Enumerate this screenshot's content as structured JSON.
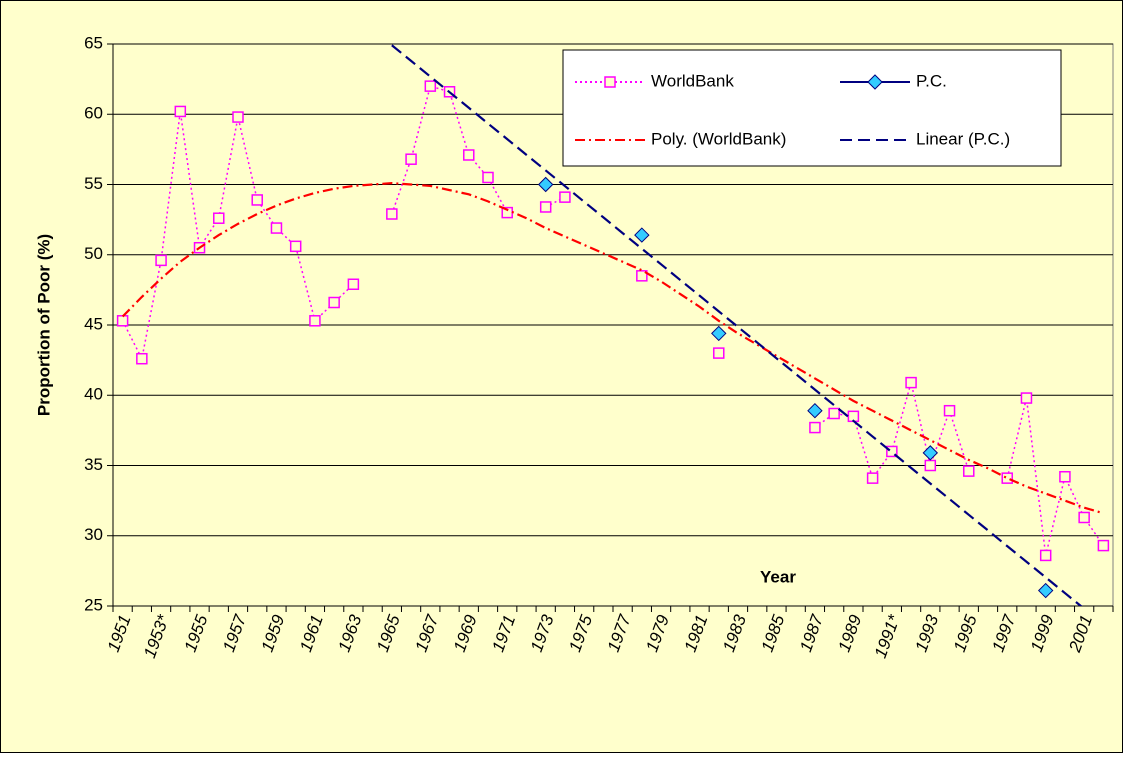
{
  "chart_data": {
    "type": "line",
    "x_label": "Year",
    "y_label": "Proportion of Poor (%)",
    "categories": [
      "1951",
      null,
      "1953*",
      null,
      "1955",
      null,
      "1957",
      null,
      "1959",
      null,
      "1961",
      null,
      "1963",
      null,
      "1965",
      null,
      "1967",
      null,
      "1969",
      null,
      "1971",
      null,
      "1973",
      null,
      "1975",
      null,
      "1977",
      null,
      "1979",
      null,
      "1981",
      null,
      "1983",
      null,
      "1985",
      null,
      "1987",
      null,
      "1989",
      null,
      "1991*",
      null,
      "1993",
      null,
      "1995",
      null,
      "1997",
      null,
      "1999",
      null,
      "2001",
      null
    ],
    "series": [
      {
        "name": "WorldBank",
        "color": "#ff00ff",
        "marker": "square",
        "line": "dotted",
        "values": [
          45.3,
          42.6,
          49.6,
          60.2,
          50.5,
          52.6,
          59.8,
          53.9,
          51.9,
          50.6,
          45.3,
          46.6,
          47.9,
          null,
          52.9,
          56.8,
          62.0,
          61.6,
          57.1,
          55.5,
          53.0,
          null,
          53.4,
          54.1,
          null,
          null,
          null,
          48.5,
          null,
          null,
          null,
          43.0,
          null,
          null,
          null,
          null,
          37.7,
          38.7,
          38.5,
          34.1,
          36.0,
          40.9,
          35.0,
          38.9,
          34.6,
          null,
          34.1,
          39.8,
          28.6,
          34.2,
          31.3,
          29.3
        ]
      },
      {
        "name": "P.C.",
        "color": "#000080",
        "marker": "diamond",
        "line": "none",
        "values": [
          null,
          null,
          null,
          null,
          null,
          null,
          null,
          null,
          null,
          null,
          null,
          null,
          null,
          null,
          null,
          null,
          null,
          null,
          null,
          null,
          null,
          null,
          55.0,
          null,
          null,
          null,
          null,
          51.4,
          null,
          null,
          null,
          44.4,
          null,
          null,
          null,
          null,
          38.9,
          null,
          null,
          null,
          null,
          null,
          35.9,
          null,
          null,
          null,
          null,
          null,
          26.1,
          null,
          null,
          null
        ]
      },
      {
        "name": "Poly. (WorldBank)",
        "color": "#ff0000",
        "marker": "none",
        "line": "dashdot",
        "values": [
          45.6,
          47.0,
          48.3,
          49.5,
          50.5,
          51.4,
          52.2,
          52.9,
          53.5,
          54.0,
          54.4,
          54.7,
          54.9,
          55.0,
          55.1,
          55.0,
          54.9,
          54.6,
          54.3,
          53.8,
          53.2,
          52.6,
          51.9,
          51.3,
          50.7,
          50.1,
          49.5,
          48.9,
          48.1,
          47.2,
          46.3,
          45.3,
          44.4,
          43.6,
          42.8,
          42.0,
          41.2,
          40.4,
          39.6,
          38.9,
          38.2,
          37.5,
          36.8,
          36.1,
          35.4,
          34.8,
          34.1,
          33.5,
          33.0,
          32.5,
          32.0,
          31.6
        ]
      },
      {
        "name": "Linear (P.C.)",
        "color": "#000080",
        "marker": "none",
        "line": "dashed",
        "values": [
          null,
          null,
          null,
          null,
          null,
          null,
          null,
          null,
          null,
          null,
          null,
          null,
          null,
          null,
          64.91,
          63.8,
          62.68,
          61.57,
          60.46,
          59.34,
          58.23,
          57.11,
          56.0,
          54.89,
          53.77,
          52.66,
          51.54,
          50.43,
          49.32,
          48.2,
          47.09,
          45.97,
          44.86,
          43.75,
          42.63,
          41.52,
          40.4,
          39.29,
          38.18,
          37.06,
          35.95,
          34.83,
          33.72,
          32.61,
          31.49,
          30.38,
          29.26,
          28.15,
          27.04,
          25.92,
          24.81,
          null
        ]
      }
    ],
    "ylim": [
      25,
      65
    ],
    "yticks": [
      25,
      30,
      35,
      40,
      45,
      50,
      55,
      60,
      65
    ],
    "grid": true,
    "legend": "upper right"
  }
}
